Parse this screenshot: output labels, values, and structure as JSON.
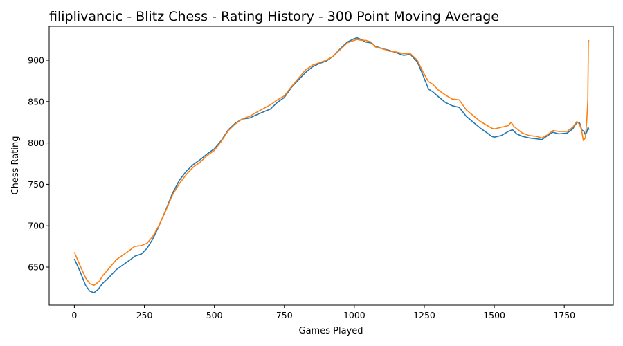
{
  "chart_data": {
    "type": "line",
    "title": "filiplivancic - Blitz Chess - Rating History - 300 Point Moving Average",
    "xlabel": "Games Played",
    "ylabel": "Chess Rating",
    "xlim": [
      -90,
      1925
    ],
    "ylim": [
      604,
      941
    ],
    "x_ticks": [
      0,
      250,
      500,
      750,
      1000,
      1250,
      1500,
      1750
    ],
    "y_ticks": [
      650,
      700,
      750,
      800,
      850,
      900
    ],
    "grid": false,
    "legend": "none",
    "series": [
      {
        "color": "#1f77b4",
        "points": [
          [
            0,
            660
          ],
          [
            20,
            645
          ],
          [
            40,
            628
          ],
          [
            55,
            621
          ],
          [
            70,
            619
          ],
          [
            85,
            623
          ],
          [
            100,
            630
          ],
          [
            125,
            638
          ],
          [
            150,
            647
          ],
          [
            175,
            653
          ],
          [
            200,
            659
          ],
          [
            215,
            663
          ],
          [
            240,
            666
          ],
          [
            260,
            673
          ],
          [
            280,
            684
          ],
          [
            300,
            698
          ],
          [
            325,
            718
          ],
          [
            350,
            739
          ],
          [
            375,
            755
          ],
          [
            400,
            766
          ],
          [
            425,
            774
          ],
          [
            450,
            780
          ],
          [
            475,
            787
          ],
          [
            500,
            793
          ],
          [
            525,
            803
          ],
          [
            550,
            816
          ],
          [
            575,
            824
          ],
          [
            600,
            829
          ],
          [
            625,
            830
          ],
          [
            650,
            834
          ],
          [
            700,
            841
          ],
          [
            725,
            849
          ],
          [
            750,
            855
          ],
          [
            775,
            867
          ],
          [
            800,
            876
          ],
          [
            825,
            885
          ],
          [
            850,
            892
          ],
          [
            875,
            896
          ],
          [
            900,
            899
          ],
          [
            925,
            905
          ],
          [
            950,
            914
          ],
          [
            975,
            922
          ],
          [
            1000,
            926
          ],
          [
            1010,
            927
          ],
          [
            1025,
            925
          ],
          [
            1040,
            922
          ],
          [
            1060,
            921
          ],
          [
            1075,
            917
          ],
          [
            1100,
            914
          ],
          [
            1125,
            912
          ],
          [
            1150,
            909
          ],
          [
            1175,
            906
          ],
          [
            1200,
            907
          ],
          [
            1225,
            898
          ],
          [
            1245,
            882
          ],
          [
            1265,
            865
          ],
          [
            1280,
            862
          ],
          [
            1300,
            856
          ],
          [
            1325,
            849
          ],
          [
            1350,
            845
          ],
          [
            1375,
            843
          ],
          [
            1400,
            832
          ],
          [
            1425,
            825
          ],
          [
            1450,
            818
          ],
          [
            1475,
            812
          ],
          [
            1490,
            808
          ],
          [
            1500,
            807
          ],
          [
            1525,
            809
          ],
          [
            1550,
            814
          ],
          [
            1565,
            816
          ],
          [
            1580,
            811
          ],
          [
            1600,
            808
          ],
          [
            1625,
            806
          ],
          [
            1650,
            805
          ],
          [
            1670,
            804
          ],
          [
            1690,
            809
          ],
          [
            1710,
            813
          ],
          [
            1730,
            811
          ],
          [
            1760,
            812
          ],
          [
            1780,
            817
          ],
          [
            1795,
            825
          ],
          [
            1805,
            824
          ],
          [
            1812,
            816
          ],
          [
            1820,
            814
          ],
          [
            1825,
            810
          ],
          [
            1830,
            813
          ],
          [
            1835,
            819
          ],
          [
            1838,
            816
          ]
        ]
      },
      {
        "color": "#ff7f0e",
        "points": [
          [
            0,
            668
          ],
          [
            20,
            652
          ],
          [
            40,
            637
          ],
          [
            55,
            630
          ],
          [
            70,
            628
          ],
          [
            90,
            633
          ],
          [
            100,
            639
          ],
          [
            125,
            649
          ],
          [
            150,
            659
          ],
          [
            175,
            665
          ],
          [
            200,
            671
          ],
          [
            215,
            675
          ],
          [
            240,
            676
          ],
          [
            260,
            679
          ],
          [
            280,
            687
          ],
          [
            300,
            699
          ],
          [
            325,
            717
          ],
          [
            350,
            737
          ],
          [
            375,
            751
          ],
          [
            400,
            762
          ],
          [
            425,
            771
          ],
          [
            450,
            777
          ],
          [
            475,
            785
          ],
          [
            500,
            791
          ],
          [
            525,
            802
          ],
          [
            550,
            815
          ],
          [
            575,
            823
          ],
          [
            600,
            829
          ],
          [
            625,
            832
          ],
          [
            650,
            837
          ],
          [
            700,
            846
          ],
          [
            725,
            852
          ],
          [
            750,
            857
          ],
          [
            775,
            868
          ],
          [
            800,
            878
          ],
          [
            825,
            888
          ],
          [
            850,
            894
          ],
          [
            875,
            897
          ],
          [
            900,
            900
          ],
          [
            925,
            905
          ],
          [
            950,
            913
          ],
          [
            975,
            921
          ],
          [
            1000,
            924
          ],
          [
            1010,
            925
          ],
          [
            1025,
            924
          ],
          [
            1040,
            924
          ],
          [
            1060,
            922
          ],
          [
            1075,
            916
          ],
          [
            1100,
            914
          ],
          [
            1125,
            911
          ],
          [
            1150,
            910
          ],
          [
            1175,
            908
          ],
          [
            1200,
            908
          ],
          [
            1225,
            900
          ],
          [
            1245,
            886
          ],
          [
            1265,
            874
          ],
          [
            1280,
            871
          ],
          [
            1300,
            864
          ],
          [
            1325,
            858
          ],
          [
            1350,
            853
          ],
          [
            1375,
            852
          ],
          [
            1400,
            840
          ],
          [
            1425,
            833
          ],
          [
            1450,
            826
          ],
          [
            1475,
            821
          ],
          [
            1490,
            818
          ],
          [
            1500,
            817
          ],
          [
            1525,
            819
          ],
          [
            1550,
            821
          ],
          [
            1560,
            825
          ],
          [
            1570,
            820
          ],
          [
            1600,
            812
          ],
          [
            1625,
            809
          ],
          [
            1650,
            808
          ],
          [
            1670,
            806
          ],
          [
            1690,
            810
          ],
          [
            1710,
            815
          ],
          [
            1730,
            814
          ],
          [
            1760,
            814
          ],
          [
            1780,
            819
          ],
          [
            1795,
            826
          ],
          [
            1805,
            822
          ],
          [
            1812,
            815
          ],
          [
            1818,
            803
          ],
          [
            1825,
            806
          ],
          [
            1830,
            826
          ],
          [
            1834,
            852
          ],
          [
            1836,
            922
          ],
          [
            1838,
            924
          ]
        ]
      }
    ]
  }
}
